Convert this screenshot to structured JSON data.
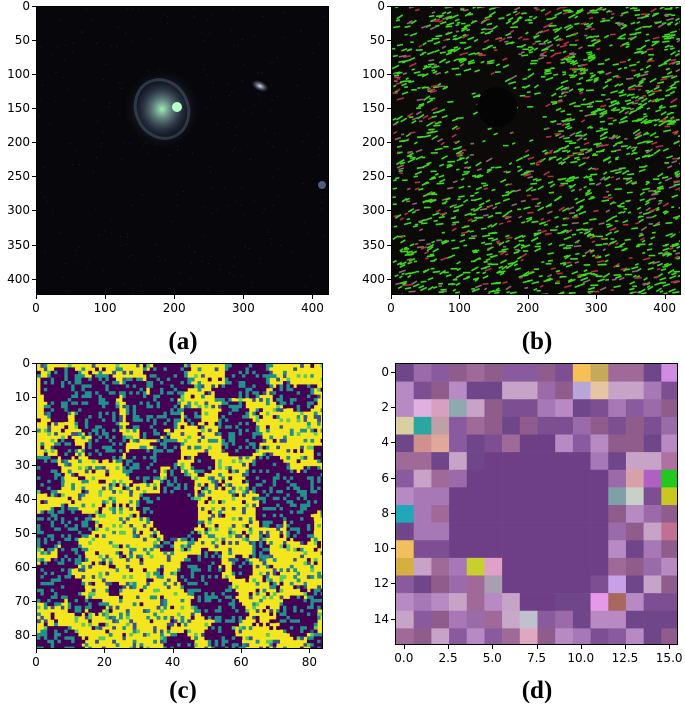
{
  "figure": {
    "panels": [
      {
        "id": "a",
        "caption": "(a)",
        "y_ticks": [
          "0",
          "50",
          "100",
          "150",
          "200",
          "250",
          "300",
          "350",
          "400"
        ],
        "x_ticks": [
          "0",
          "100",
          "200",
          "300",
          "400"
        ],
        "image_extent": [
          0,
          424
        ]
      },
      {
        "id": "b",
        "caption": "(b)",
        "y_ticks": [
          "0",
          "50",
          "100",
          "150",
          "200",
          "250",
          "300",
          "350",
          "400"
        ],
        "x_ticks": [
          "0",
          "100",
          "200",
          "300",
          "400"
        ],
        "image_extent": [
          0,
          424
        ]
      },
      {
        "id": "c",
        "caption": "(c)",
        "y_ticks": [
          "0",
          "10",
          "20",
          "30",
          "40",
          "50",
          "60",
          "70",
          "80"
        ],
        "x_ticks": [
          "0",
          "20",
          "40",
          "60",
          "80"
        ],
        "image_extent": [
          0,
          84
        ]
      },
      {
        "id": "d",
        "caption": "(d)",
        "y_ticks": [
          "0",
          "2",
          "4",
          "6",
          "8",
          "10",
          "12",
          "14"
        ],
        "x_ticks": [
          "0.0",
          "2.5",
          "5.0",
          "7.5",
          "10.0",
          "12.5",
          "15.0"
        ],
        "image_extent": [
          0,
          15
        ]
      }
    ]
  },
  "colors": {
    "galaxy_background": "#07070b",
    "feature_green": "#3bdc1c",
    "feature_red": "#b2303f",
    "viridis_yellow": "#f3e51e",
    "viridis_purple": "#440154",
    "viridis_teal": "#21918c",
    "patch_purple": "#6e3f86"
  }
}
